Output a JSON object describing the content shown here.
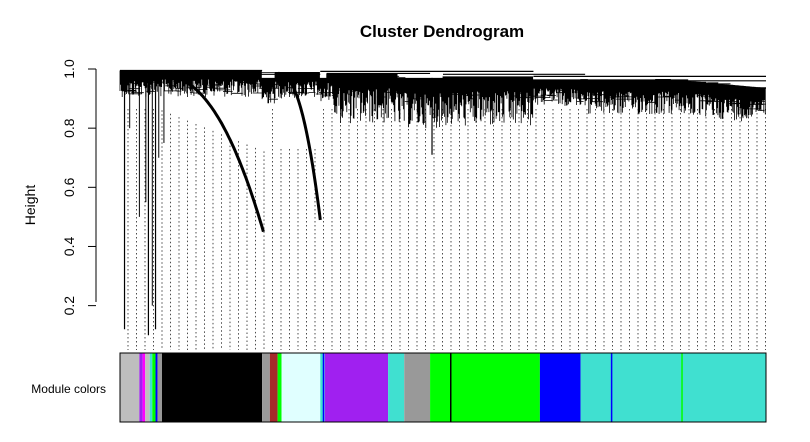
{
  "chart_data": {
    "type": "dendrogram",
    "title": "Cluster Dendrogram",
    "xlabel": "",
    "ylabel": "Height",
    "ylim": [
      0.05,
      1.0
    ],
    "yticks": [
      0.2,
      0.4,
      0.6,
      0.8,
      1.0
    ],
    "ytick_labels": [
      "0.2",
      "0.4",
      "0.6",
      "0.8",
      "1.0"
    ],
    "grid": false,
    "leaf_count": 1000,
    "dendrogram_features": [
      {
        "id": "long-arc-1",
        "x_from": 0.06,
        "x_to": 0.222,
        "top_height": 0.98,
        "bottom_height": 0.45
      },
      {
        "id": "long-arc-2",
        "x_from": 0.245,
        "x_to": 0.31,
        "top_height": 0.985,
        "bottom_height": 0.49
      },
      {
        "id": "dip-1",
        "x": 0.483,
        "height": 0.71
      },
      {
        "id": "outlier-1",
        "x": 0.007,
        "height": 0.12
      },
      {
        "id": "outlier-2",
        "x": 0.044,
        "height": 0.1
      },
      {
        "id": "outlier-3",
        "x": 0.055,
        "height": 0.12
      }
    ],
    "colorbar": {
      "label": "Module colors",
      "segments": [
        {
          "name": "grey",
          "color": "#bebebe",
          "from": 0.0,
          "to": 0.03
        },
        {
          "name": "purple",
          "color": "#a020f0",
          "from": 0.03,
          "to": 0.035
        },
        {
          "name": "magenta",
          "color": "#ff00ff",
          "from": 0.035,
          "to": 0.039
        },
        {
          "name": "grey",
          "color": "#bebebe",
          "from": 0.039,
          "to": 0.046
        },
        {
          "name": "turquoise",
          "color": "#40e0d0",
          "from": 0.046,
          "to": 0.05
        },
        {
          "name": "green",
          "color": "#00ff00",
          "from": 0.05,
          "to": 0.055
        },
        {
          "name": "blue",
          "color": "#0000ff",
          "from": 0.055,
          "to": 0.058
        },
        {
          "name": "grey60",
          "color": "#999999",
          "from": 0.058,
          "to": 0.065
        },
        {
          "name": "black",
          "color": "#000000",
          "from": 0.065,
          "to": 0.22
        },
        {
          "name": "grey60",
          "color": "#999999",
          "from": 0.22,
          "to": 0.232
        },
        {
          "name": "brown",
          "color": "#a52a2a",
          "from": 0.232,
          "to": 0.244
        },
        {
          "name": "green",
          "color": "#00ff00",
          "from": 0.244,
          "to": 0.25
        },
        {
          "name": "lightcyan",
          "color": "#e0ffff",
          "from": 0.25,
          "to": 0.31
        },
        {
          "name": "turquoise",
          "color": "#40e0d0",
          "from": 0.31,
          "to": 0.317
        },
        {
          "name": "purple",
          "color": "#a020f0",
          "from": 0.317,
          "to": 0.415
        },
        {
          "name": "turquoise",
          "color": "#40e0d0",
          "from": 0.415,
          "to": 0.44
        },
        {
          "name": "grey60",
          "color": "#999999",
          "from": 0.44,
          "to": 0.48
        },
        {
          "name": "green",
          "color": "#00ff00",
          "from": 0.48,
          "to": 0.65
        },
        {
          "name": "blue",
          "color": "#0000ff",
          "from": 0.65,
          "to": 0.713
        },
        {
          "name": "turquoise",
          "color": "#40e0d0",
          "from": 0.713,
          "to": 1.0
        }
      ],
      "accent_lines": [
        {
          "color": "#000000",
          "at": 0.096
        },
        {
          "color": "#0000ff",
          "at": 0.315
        },
        {
          "color": "#000000",
          "at": 0.512
        },
        {
          "color": "#0000ff",
          "at": 0.761
        },
        {
          "color": "#00ff00",
          "at": 0.87
        }
      ]
    }
  }
}
